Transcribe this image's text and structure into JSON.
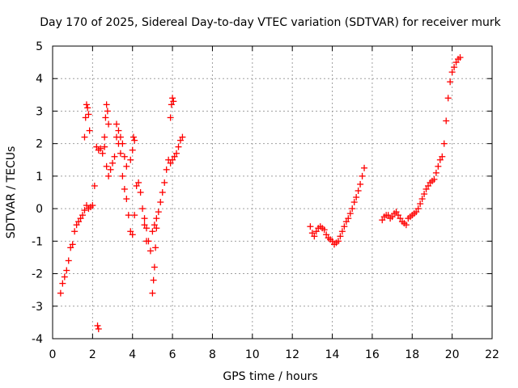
{
  "chart_data": {
    "type": "scatter",
    "title": "Day 170 of 2025, Sidereal Day-to-day VTEC variation (SDTVAR) for receiver murk",
    "xlabel": "GPS time / hours",
    "ylabel": "SDTVAR / TECUs",
    "xlim": [
      0,
      22
    ],
    "ylim": [
      -4,
      5
    ],
    "xticks": [
      "0",
      "2",
      "4",
      "6",
      "8",
      "10",
      "12",
      "14",
      "16",
      "18",
      "20",
      "22"
    ],
    "yticks": [
      "-4",
      "-3",
      "-2",
      "-1",
      "0",
      "1",
      "2",
      "3",
      "4",
      "5"
    ],
    "grid": true,
    "legend": "none",
    "marker": "+",
    "color": "#ff0000",
    "series": [
      {
        "name": "segment-1",
        "x": [
          0.4,
          0.5,
          0.6,
          0.7,
          0.8,
          0.9,
          1.0,
          1.1,
          1.2,
          1.3,
          1.4,
          1.5,
          1.6,
          1.7,
          1.8,
          1.9,
          2.0,
          2.1,
          2.2,
          2.3,
          2.4,
          2.5,
          2.6,
          2.7,
          2.8,
          2.9,
          3.0,
          3.1,
          3.2,
          3.3,
          3.4,
          3.5,
          3.6,
          3.7,
          3.8,
          3.9,
          4.0,
          4.1,
          4.2,
          4.3,
          4.4,
          4.5,
          4.6,
          4.7,
          4.8,
          4.9,
          5.0,
          5.1,
          5.2,
          5.3,
          5.4,
          5.5,
          5.6,
          5.7,
          5.8,
          5.9,
          6.0,
          6.1,
          6.2,
          6.3,
          6.4,
          6.5
        ],
        "y": [
          -2.6,
          -2.3,
          -2.1,
          -1.9,
          -1.6,
          -1.2,
          -1.1,
          -0.7,
          -0.5,
          -0.4,
          -0.3,
          -0.2,
          -0.05,
          0.1,
          0.0,
          0.05,
          0.1,
          0.7,
          1.9,
          1.8,
          1.85,
          1.7,
          1.9,
          1.3,
          1.0,
          1.2,
          1.4,
          1.6,
          2.2,
          2.0,
          1.7,
          1.0,
          0.6,
          0.3,
          -0.2,
          -0.7,
          -0.8,
          -0.2,
          0.7,
          0.8,
          0.5,
          0.0,
          -0.3,
          -0.6,
          -1.0,
          -1.3,
          -0.7,
          -0.5,
          -0.3,
          -0.1,
          0.2,
          0.5,
          0.8,
          1.2,
          1.5,
          1.4,
          1.5,
          1.6,
          1.7,
          1.9,
          2.1,
          2.2
        ]
      },
      {
        "name": "segment-1-spikes",
        "x": [
          1.6,
          1.65,
          1.7,
          1.75,
          1.8,
          1.85,
          2.6,
          2.65,
          2.7,
          2.75,
          2.8,
          3.2,
          3.3,
          3.4,
          3.5,
          3.6,
          3.7,
          3.9,
          4.0,
          4.05,
          4.1,
          4.6,
          4.7,
          5.0,
          5.05,
          5.1,
          5.15,
          5.2,
          5.9,
          5.95,
          6.0,
          6.05,
          2.25,
          2.3
        ],
        "y": [
          2.2,
          2.8,
          3.2,
          3.1,
          2.9,
          2.4,
          2.2,
          2.8,
          3.2,
          3.0,
          2.6,
          2.6,
          2.4,
          2.2,
          2.0,
          1.6,
          1.3,
          1.5,
          1.8,
          2.2,
          2.1,
          -0.5,
          -1.0,
          -2.6,
          -2.2,
          -1.8,
          -1.2,
          -0.6,
          2.8,
          3.2,
          3.4,
          3.3,
          -3.6,
          -3.7
        ]
      },
      {
        "name": "segment-2",
        "x": [
          12.9,
          13.0,
          13.1,
          13.2,
          13.3,
          13.4,
          13.5,
          13.6,
          13.7,
          13.8,
          13.9,
          14.0,
          14.1,
          14.2,
          14.3,
          14.4,
          14.5,
          14.6,
          14.7,
          14.8,
          14.9,
          15.0,
          15.1,
          15.2,
          15.3,
          15.4,
          15.5,
          15.6
        ],
        "y": [
          -0.55,
          -0.75,
          -0.85,
          -0.7,
          -0.6,
          -0.55,
          -0.6,
          -0.65,
          -0.8,
          -0.9,
          -0.95,
          -1.0,
          -1.1,
          -1.05,
          -1.0,
          -0.85,
          -0.7,
          -0.55,
          -0.4,
          -0.3,
          -0.15,
          0.0,
          0.2,
          0.35,
          0.55,
          0.75,
          1.0,
          1.25
        ]
      },
      {
        "name": "segment-3",
        "x": [
          16.5,
          16.6,
          16.7,
          16.8,
          16.9,
          17.0,
          17.1,
          17.2,
          17.3,
          17.4,
          17.5,
          17.6,
          17.7,
          17.8,
          17.9,
          18.0,
          18.1,
          18.2,
          18.3,
          18.4,
          18.5,
          18.6,
          18.7,
          18.8,
          18.9,
          19.0,
          19.1,
          19.2,
          19.3,
          19.4,
          19.5,
          19.6,
          19.7,
          19.8,
          19.9,
          20.0,
          20.1,
          20.2,
          20.3,
          20.4
        ],
        "y": [
          -0.35,
          -0.25,
          -0.2,
          -0.2,
          -0.3,
          -0.25,
          -0.15,
          -0.1,
          -0.2,
          -0.3,
          -0.4,
          -0.45,
          -0.5,
          -0.3,
          -0.25,
          -0.2,
          -0.15,
          -0.1,
          0.0,
          0.15,
          0.3,
          0.45,
          0.6,
          0.7,
          0.8,
          0.85,
          0.9,
          1.1,
          1.3,
          1.5,
          1.6,
          2.0,
          2.7,
          3.4,
          3.9,
          4.2,
          4.35,
          4.5,
          4.6,
          4.65
        ]
      }
    ]
  }
}
